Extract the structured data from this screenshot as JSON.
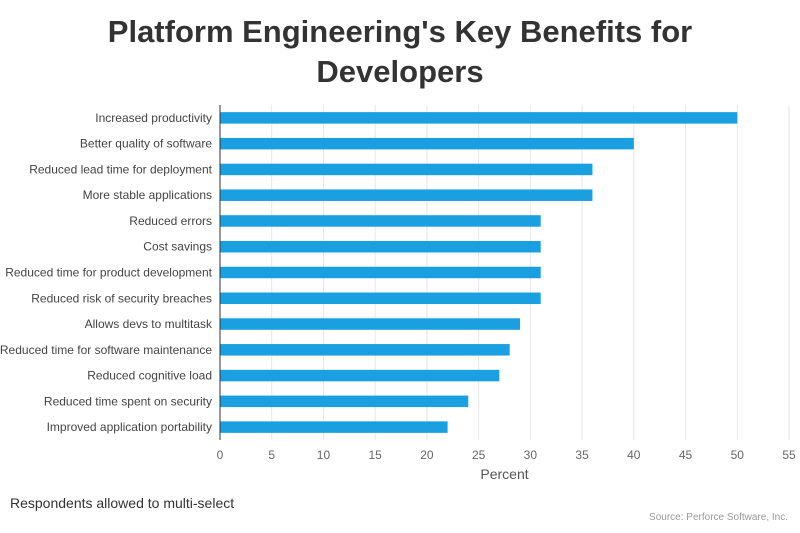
{
  "chart_data": {
    "type": "bar",
    "orientation": "horizontal",
    "title": "Platform Engineering's Key Benefits for Developers",
    "title_lines": [
      "Platform Engineering's Key Benefits for",
      "Developers"
    ],
    "xlabel": "Percent",
    "ylabel": "",
    "xlim": [
      0,
      55
    ],
    "xticks": [
      0,
      5,
      10,
      15,
      20,
      25,
      30,
      35,
      40,
      45,
      50,
      55
    ],
    "grid": true,
    "legend": "none",
    "color": "#1a9fe0",
    "categories": [
      "Increased productivity",
      "Better quality of software",
      "Reduced lead time for deployment",
      "More stable applications",
      "Reduced errors",
      "Cost savings",
      "Reduced time for product development",
      "Reduced risk of security breaches",
      "Allows devs to multitask",
      "Reduced time for software maintenance",
      "Reduced cognitive load",
      "Reduced time spent on security",
      "Improved application portability"
    ],
    "values": [
      50,
      40,
      36,
      36,
      31,
      31,
      31,
      31,
      29,
      28,
      27,
      24,
      22
    ]
  },
  "footnote": "Respondents allowed to multi-select",
  "credit": "Source: Perforce Software, Inc."
}
